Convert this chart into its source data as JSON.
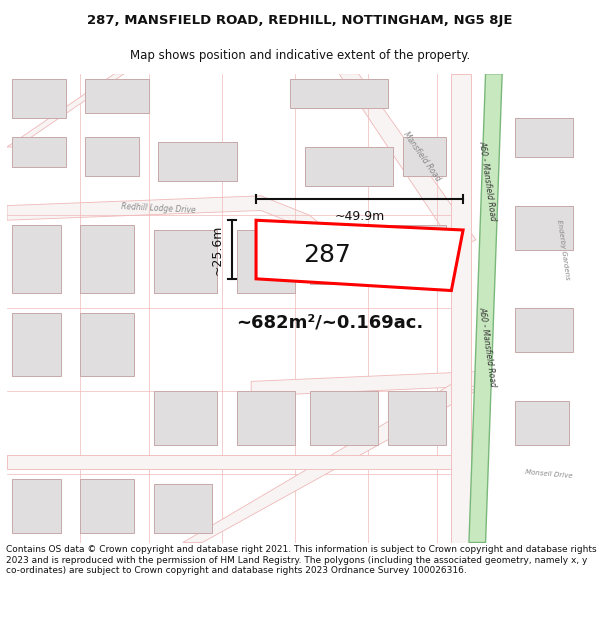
{
  "title_line1": "287, MANSFIELD ROAD, REDHILL, NOTTINGHAM, NG5 8JE",
  "title_line2": "Map shows position and indicative extent of the property.",
  "footer": "Contains OS data © Crown copyright and database right 2021. This information is subject to Crown copyright and database rights 2023 and is reproduced with the permission of HM Land Registry. The polygons (including the associated geometry, namely x, y co-ordinates) are subject to Crown copyright and database rights 2023 Ordnance Survey 100026316.",
  "area_label": "~682m²/~0.169ac.",
  "width_label": "~49.9m",
  "height_label": "~25.6m",
  "property_number": "287",
  "map_bg": "#ffffff",
  "road_fill_major": "#c8e8c0",
  "road_edge_major": "#7ab87a",
  "road_line_color": "#f0b8b8",
  "road_fill_color": "#f8f4f4",
  "building_fill": "#e0dede",
  "building_stroke": "#c8a8a8",
  "property_fill": "#ffffff",
  "property_stroke": "#ff0000",
  "dim_line_color": "#111111",
  "text_color": "#111111",
  "road_label_color": "#888888",
  "a60_label_color": "#333333"
}
